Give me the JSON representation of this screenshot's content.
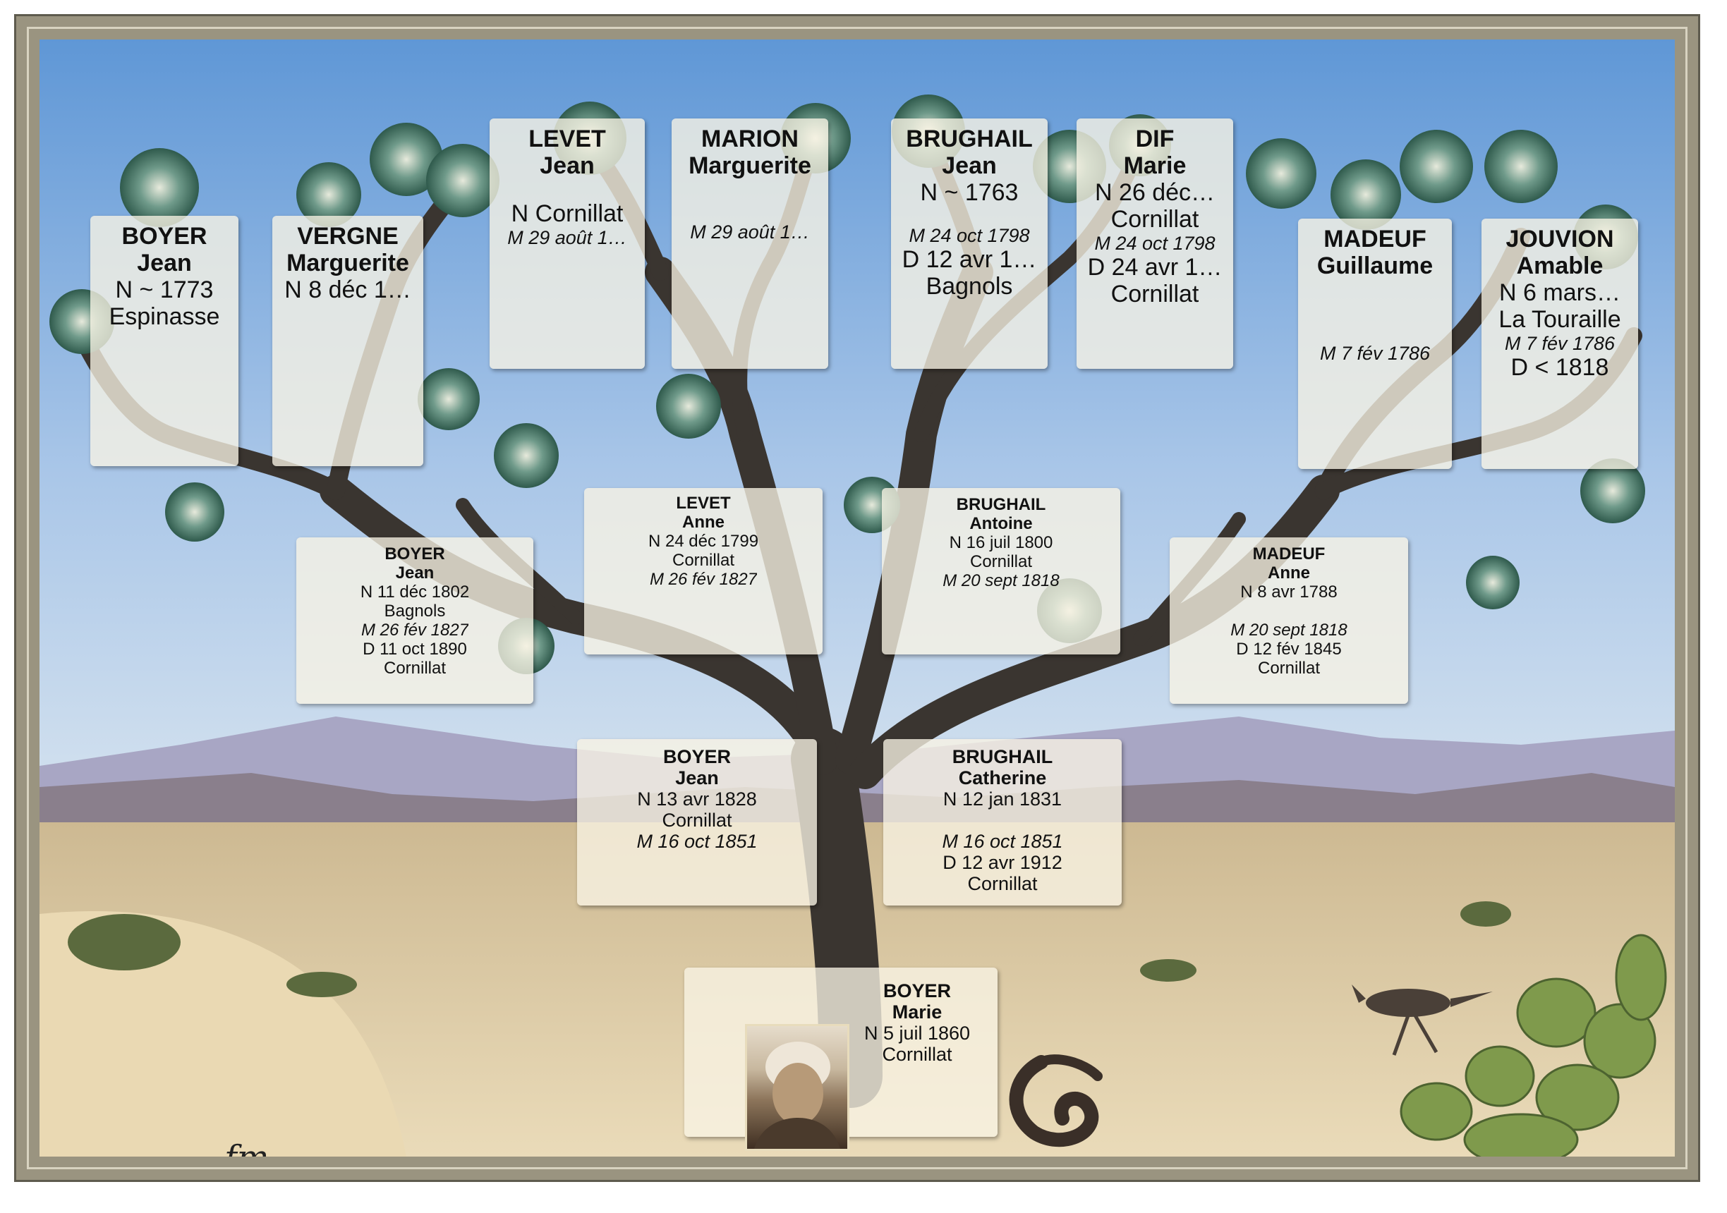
{
  "people": {
    "p1": {
      "surname": "BOYER",
      "given": "Jean",
      "lines": [
        "N ~ 1773",
        "Espinasse"
      ]
    },
    "p2": {
      "surname": "VERGNE",
      "given": "Marguerite",
      "lines": [
        "N 8 déc 1…"
      ]
    },
    "p3": {
      "surname": "LEVET",
      "given": "Jean",
      "lines": [
        "N Cornillat"
      ],
      "marriage": "M 29 août 1…"
    },
    "p4": {
      "surname": "MARION",
      "given": "Marguerite",
      "marriage": "M 29 août 1…"
    },
    "p5": {
      "surname": "BRUGHAIL",
      "given": "Jean",
      "lines": [
        "N ~ 1763"
      ],
      "marriage": "M 24 oct 1798",
      "after": [
        "D 12 avr 1…",
        "Bagnols"
      ]
    },
    "p6": {
      "surname": "DIF",
      "given": "Marie",
      "lines": [
        "N 26 déc…",
        "Cornillat"
      ],
      "marriage": "M 24 oct 1798",
      "after": [
        "D 24 avr 1…",
        "Cornillat"
      ]
    },
    "p7": {
      "surname": "MADEUF",
      "given": "Guillaume",
      "marriage": "M 7 fév 1786"
    },
    "p8": {
      "surname": "JOUVION",
      "given": "Amable",
      "lines": [
        "N 6 mars…",
        "La Touraille"
      ],
      "marriage": "M 7 fév 1786",
      "after": [
        "D < 1818"
      ]
    },
    "g1": {
      "surname": "BOYER",
      "given": "Jean",
      "lines": [
        "N 11 déc 1802",
        "Bagnols"
      ],
      "marriage": "M 26 fév 1827",
      "after": [
        "D 11 oct 1890",
        "Cornillat"
      ]
    },
    "g2": {
      "surname": "LEVET",
      "given": "Anne",
      "lines": [
        "N 24 déc 1799",
        "Cornillat"
      ],
      "marriage": "M 26 fév 1827"
    },
    "g3": {
      "surname": "BRUGHAIL",
      "given": "Antoine",
      "lines": [
        "N 16 juil 1800",
        "Cornillat"
      ],
      "marriage": "M 20 sept 1818"
    },
    "g4": {
      "surname": "MADEUF",
      "given": "Anne",
      "lines": [
        "N 8 avr 1788"
      ],
      "marriage": "M 20 sept 1818",
      "after": [
        "D 12 fév 1845",
        "Cornillat"
      ]
    },
    "f1": {
      "surname": "BOYER",
      "given": "Jean",
      "lines": [
        "N 13 avr 1828",
        "Cornillat"
      ],
      "marriage": "M 16 oct 1851"
    },
    "f2": {
      "surname": "BRUGHAIL",
      "given": "Catherine",
      "lines": [
        "N 12 jan 1831"
      ],
      "marriage": "M 16 oct 1851",
      "after": [
        "D 12 avr 1912",
        "Cornillat"
      ]
    },
    "root": {
      "surname": "BOYER",
      "given": "Marie",
      "lines": [
        "N 5 juil 1860",
        "Cornillat"
      ]
    }
  },
  "colors": {
    "sky_top": "#5f97d6",
    "sky_bottom": "#c9dcef",
    "desert": "#e2cfa6",
    "trunk": "#3a3530",
    "card": "#f8f4e4",
    "frame": "#9a9480"
  },
  "icons": {
    "portrait": "portrait-photo",
    "signature": "fm",
    "snake": "snake-icon",
    "roadrunner": "roadrunner-icon",
    "cactus": "cactus-icon"
  },
  "signature": "fm"
}
